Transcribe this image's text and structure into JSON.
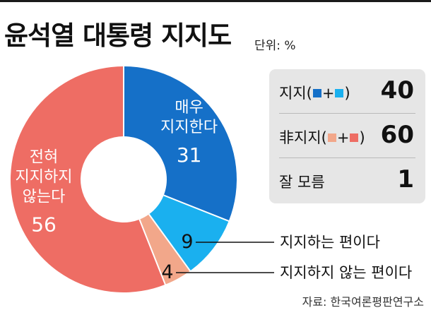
{
  "title": "윤석열 대통령 지지도",
  "unit": "단위: %",
  "legend": [
    {
      "label_prefix": "지지(",
      "label_plus": "+",
      "label_suffix": ")",
      "value": "40",
      "swatches": [
        "#1570c8",
        "#1ab0ef"
      ]
    },
    {
      "label_prefix": "非지지(",
      "label_plus": "+",
      "label_suffix": ")",
      "value": "60",
      "swatches": [
        "#f2a78a",
        "#ee6d64"
      ]
    },
    {
      "label": "잘 모름",
      "value": "1"
    }
  ],
  "source": "자료: 한국여론평판연구소",
  "chart_data": {
    "type": "pie",
    "subtype": "donut",
    "title": "윤석열 대통령 지지도",
    "unit": "%",
    "slices": [
      {
        "label": "매우 지지한다",
        "label_lines": [
          "매우",
          "지지한다"
        ],
        "value": 31,
        "color": "#1570c8"
      },
      {
        "label": "지지하는 편이다",
        "value": 9,
        "color": "#1ab0ef"
      },
      {
        "label": "지지하지 않는 편이다",
        "value": 4,
        "color": "#f2a78a"
      },
      {
        "label": "전혀 지지하지 않는다",
        "label_lines": [
          "전혀",
          "지지하지",
          "않는다"
        ],
        "value": 56,
        "color": "#ee6d64"
      }
    ]
  }
}
